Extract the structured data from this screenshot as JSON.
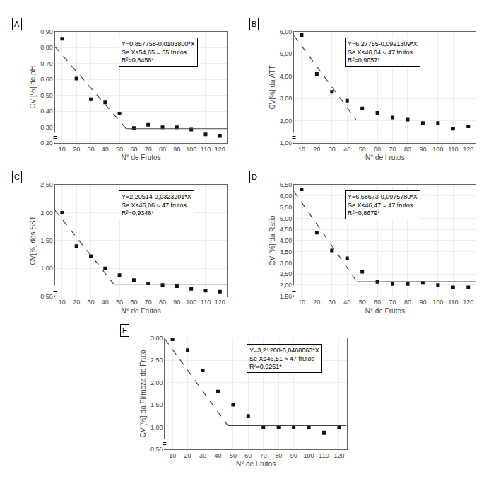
{
  "chart_data": [
    {
      "type": "scatter",
      "title": "A",
      "xlabel": "N° de Frutos",
      "ylabel": "CV [%] de pH",
      "xlim": [
        5,
        125
      ],
      "xticks": [
        10,
        20,
        30,
        40,
        50,
        60,
        70,
        80,
        90,
        100,
        110,
        120
      ],
      "ylim": [
        0.2,
        0.9
      ],
      "yticks": [
        {
          "value": 0.2,
          "label": "0,20"
        },
        {
          "value": 0.3,
          "label": "0,30"
        },
        {
          "value": 0.4,
          "label": "0,40"
        },
        {
          "value": 0.5,
          "label": "0,50"
        },
        {
          "value": 0.6,
          "label": "0,60"
        },
        {
          "value": 0.7,
          "label": "0,70"
        },
        {
          "value": 0.8,
          "label": "0,80"
        },
        {
          "value": 0.9,
          "label": "0,90"
        }
      ],
      "grid": true,
      "annotations": [
        {
          "text": "Y=0,857758-0,0103800*X\nSe X≤54,65 = 55 frutos\nR²=0,8458*"
        },
        {
          "text": "="
        }
      ],
      "series": [
        {
          "type": "scatter",
          "marker": "square",
          "color": "#111111",
          "x": [
            10,
            20,
            30,
            40,
            50,
            60,
            70,
            80,
            90,
            100,
            110,
            120
          ],
          "values": [
            0.855,
            0.605,
            0.475,
            0.455,
            0.385,
            0.295,
            0.315,
            0.3,
            0.3,
            0.285,
            0.255,
            0.245
          ]
        },
        {
          "type": "line",
          "line_style": "dashed",
          "color": "#444444",
          "x": [
            5,
            54.65
          ],
          "values": [
            0.805858,
            0.290491
          ]
        },
        {
          "type": "line",
          "line_style": "solid",
          "color": "#444444",
          "x": [
            54.65,
            125
          ],
          "values": [
            0.290491,
            0.290491
          ]
        }
      ]
    },
    {
      "type": "scatter",
      "title": "B",
      "xlabel": "N° de I rutos",
      "ylabel": "CV[%] da ATT",
      "xlim": [
        5,
        125
      ],
      "xticks": [
        10,
        20,
        30,
        40,
        50,
        60,
        70,
        80,
        90,
        100,
        110,
        120
      ],
      "ylim": [
        1.0,
        6.0
      ],
      "yticks": [
        {
          "value": 1.0,
          "label": "1,00"
        },
        {
          "value": 2.0,
          "label": "2,00"
        },
        {
          "value": 3.0,
          "label": "3,00"
        },
        {
          "value": 4.0,
          "label": "4,00"
        },
        {
          "value": 5.0,
          "label": "5,00"
        },
        {
          "value": 6.0,
          "label": "6,00"
        }
      ],
      "grid": true,
      "annotations": [
        {
          "text": "Y=6,27755-0,0921309*X\nSe X≤46,04 ≈ 47 frutos\nR²=0,9057*"
        },
        {
          "text": "="
        }
      ],
      "series": [
        {
          "type": "scatter",
          "marker": "square",
          "color": "#111111",
          "x": [
            10,
            20,
            30,
            40,
            50,
            60,
            70,
            80,
            90,
            100,
            110,
            120
          ],
          "values": [
            5.85,
            4.1,
            3.3,
            2.9,
            2.55,
            2.35,
            2.15,
            2.05,
            1.9,
            1.9,
            1.65,
            1.75
          ]
        },
        {
          "type": "line",
          "line_style": "dashed",
          "color": "#444444",
          "x": [
            5,
            46.04
          ],
          "values": [
            5.8168955,
            2.035843364
          ]
        },
        {
          "type": "line",
          "line_style": "solid",
          "color": "#444444",
          "x": [
            46.04,
            125
          ],
          "values": [
            2.035843364,
            2.035843364
          ]
        }
      ]
    },
    {
      "type": "scatter",
      "title": "C",
      "xlabel": "N° de Frutos",
      "ylabel": "CV[%] dos SST",
      "xlim": [
        5,
        125
      ],
      "xticks": [
        10,
        20,
        30,
        40,
        50,
        60,
        70,
        80,
        90,
        100,
        110,
        120
      ],
      "ylim": [
        0.5,
        2.5
      ],
      "yticks": [
        {
          "value": 0.5,
          "label": "0,50"
        },
        {
          "value": 1.0,
          "label": "1,00"
        },
        {
          "value": 1.5,
          "label": "1,50"
        },
        {
          "value": 2.0,
          "label": "2,00"
        },
        {
          "value": 2.5,
          "label": "2,50"
        }
      ],
      "grid": true,
      "annotations": [
        {
          "text": "Y=2,20514-0,0323201*X\nSe X≤46,06 ≈ 47 frutos\nR²=0,9348*"
        },
        {
          "text": "="
        }
      ],
      "series": [
        {
          "type": "scatter",
          "marker": "square",
          "color": "#111111",
          "x": [
            10,
            20,
            30,
            40,
            50,
            60,
            70,
            80,
            90,
            100,
            110,
            120
          ],
          "values": [
            2.0,
            1.4,
            1.22,
            1.0,
            0.88,
            0.79,
            0.73,
            0.7,
            0.68,
            0.63,
            0.6,
            0.58
          ]
        },
        {
          "type": "line",
          "line_style": "dashed",
          "color": "#444444",
          "x": [
            5,
            46.06
          ],
          "values": [
            2.0435395,
            0.716476194
          ]
        },
        {
          "type": "line",
          "line_style": "solid",
          "color": "#444444",
          "x": [
            46.06,
            125
          ],
          "values": [
            0.716476194,
            0.716476194
          ]
        }
      ]
    },
    {
      "type": "scatter",
      "title": "D",
      "xlabel": "N° de Frutos",
      "ylabel": "CV [%] da Ratio",
      "xlim": [
        5,
        125
      ],
      "xticks": [
        10,
        20,
        30,
        40,
        50,
        60,
        70,
        80,
        90,
        100,
        110,
        120
      ],
      "ylim": [
        1.5,
        6.5
      ],
      "yticks": [
        {
          "value": 1.5,
          "label": "1,50"
        },
        {
          "value": 2.0,
          "label": "2,00"
        },
        {
          "value": 2.5,
          "label": "2,50"
        },
        {
          "value": 3.0,
          "label": "3,00"
        },
        {
          "value": 3.5,
          "label": "3,50"
        },
        {
          "value": 4.0,
          "label": "4,00"
        },
        {
          "value": 4.5,
          "label": "4,50"
        },
        {
          "value": 5.0,
          "label": "5,00"
        },
        {
          "value": 5.5,
          "label": "5,50"
        },
        {
          "value": 6.0,
          "label": "6,00"
        },
        {
          "value": 6.5,
          "label": "6,50"
        }
      ],
      "grid": true,
      "annotations": [
        {
          "text": "Y=6,68673-0,0975780*X\nSe X≤46,47 = 47 frutos\nR²=0,8679*"
        },
        {
          "text": "="
        }
      ],
      "series": [
        {
          "type": "scatter",
          "marker": "square",
          "color": "#111111",
          "x": [
            10,
            20,
            30,
            40,
            50,
            60,
            70,
            80,
            90,
            100,
            110,
            120
          ],
          "values": [
            6.3,
            4.35,
            3.55,
            3.2,
            2.6,
            2.15,
            2.05,
            2.05,
            2.1,
            2.0,
            1.9,
            1.9
          ]
        },
        {
          "type": "line",
          "line_style": "dashed",
          "color": "#444444",
          "x": [
            5,
            46.47
          ],
          "values": [
            6.19884,
            2.15228034
          ]
        },
        {
          "type": "line",
          "line_style": "solid",
          "color": "#444444",
          "x": [
            46.47,
            125
          ],
          "values": [
            2.15228034,
            2.15228034
          ]
        }
      ]
    },
    {
      "type": "scatter",
      "title": "E",
      "xlabel": "N° de Frutos",
      "ylabel": "CV [%] da Firmeza de Fruto",
      "xlim": [
        5,
        125
      ],
      "xticks": [
        10,
        20,
        30,
        40,
        50,
        60,
        70,
        80,
        90,
        100,
        110,
        120
      ],
      "ylim": [
        0.5,
        3.0
      ],
      "yticks": [
        {
          "value": 0.5,
          "label": "0,50"
        },
        {
          "value": 1.0,
          "label": "1,00"
        },
        {
          "value": 1.5,
          "label": "1,50"
        },
        {
          "value": 2.0,
          "label": "2,00"
        },
        {
          "value": 2.5,
          "label": "2,50"
        },
        {
          "value": 3.0,
          "label": "3,00"
        }
      ],
      "grid": true,
      "annotations": [
        {
          "text": "Y=3,21208-0,0468063*X\nSe X≤46,51 ≈ 47 frutos\nR²=0,9251*"
        },
        {
          "text": "="
        }
      ],
      "series": [
        {
          "type": "scatter",
          "marker": "square",
          "color": "#111111",
          "x": [
            10,
            20,
            30,
            40,
            50,
            60,
            70,
            80,
            90,
            100,
            110,
            120
          ],
          "values": [
            2.97,
            2.73,
            2.27,
            1.8,
            1.5,
            1.25,
            1.0,
            1.0,
            1.0,
            1.0,
            0.88,
            1.0
          ]
        },
        {
          "type": "line",
          "line_style": "dashed",
          "color": "#444444",
          "x": [
            5,
            46.51
          ],
          "values": [
            2.9780485,
            1.035118987
          ]
        },
        {
          "type": "line",
          "line_style": "solid",
          "color": "#444444",
          "x": [
            46.51,
            125
          ],
          "values": [
            1.035118987,
            1.035118987
          ]
        }
      ]
    }
  ]
}
